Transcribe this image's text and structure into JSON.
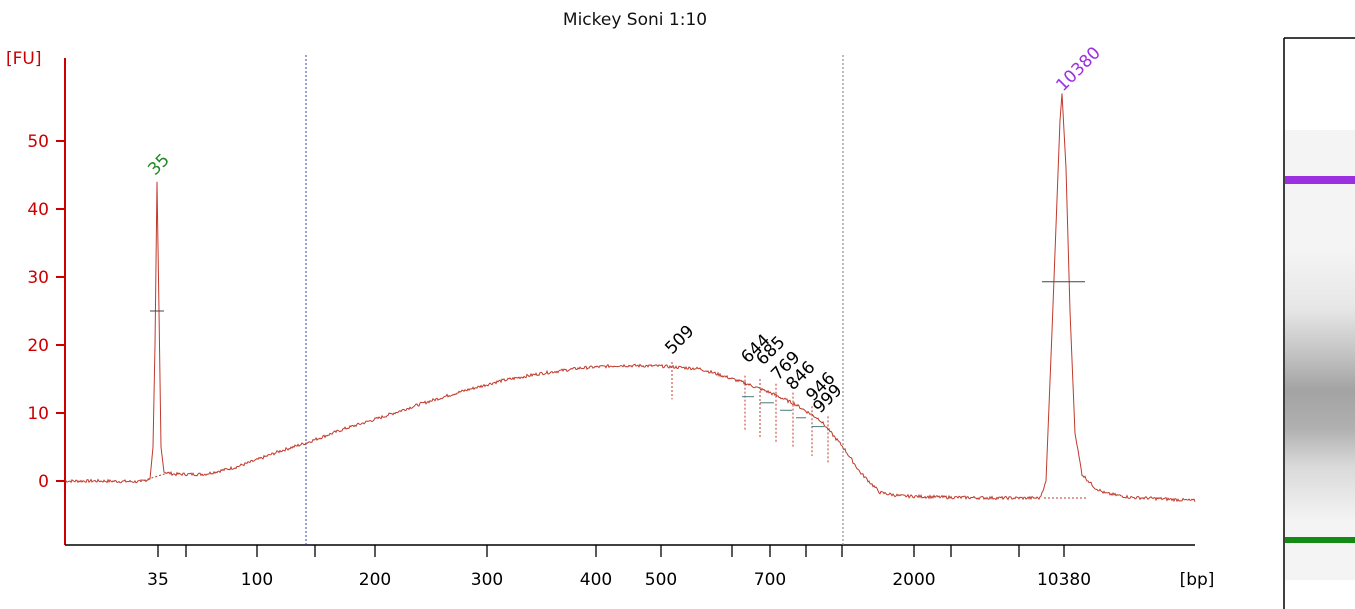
{
  "chart_data": {
    "type": "line",
    "title": "Mickey Soni 1:10",
    "ylabel": "[FU]",
    "xlabel": "[bp]",
    "ylim": [
      -9,
      62
    ],
    "yticks": [
      0,
      10,
      20,
      30,
      40,
      50
    ],
    "xticks": [
      {
        "label": "35",
        "minor": false
      },
      {
        "label": "",
        "minor": true
      },
      {
        "label": "100",
        "minor": false
      },
      {
        "label": "",
        "minor": true
      },
      {
        "label": "200",
        "minor": false
      },
      {
        "label": "300",
        "minor": false
      },
      {
        "label": "400",
        "minor": false
      },
      {
        "label": "500",
        "minor": false
      },
      {
        "label": "",
        "minor": true
      },
      {
        "label": "700",
        "minor": false
      },
      {
        "label": "",
        "minor": true
      },
      {
        "label": "",
        "minor": true
      },
      {
        "label": "2000",
        "minor": false
      },
      {
        "label": "",
        "minor": true
      },
      {
        "label": "",
        "minor": true
      },
      {
        "label": "10380",
        "minor": false
      }
    ],
    "peaks": [
      {
        "label": "35",
        "color": "#1f8a1f",
        "fu": 44
      },
      {
        "label": "10380",
        "color": "#9b30e0",
        "fu": 57
      }
    ],
    "peak_labels": [
      "509",
      "644",
      "685",
      "769",
      "846",
      "946",
      "999"
    ],
    "series_color": "#c0392b",
    "axis_color": "#cc0000"
  },
  "gel": {
    "marker_top_color": "#9b30e0",
    "marker_bottom_color": "#138a13"
  }
}
